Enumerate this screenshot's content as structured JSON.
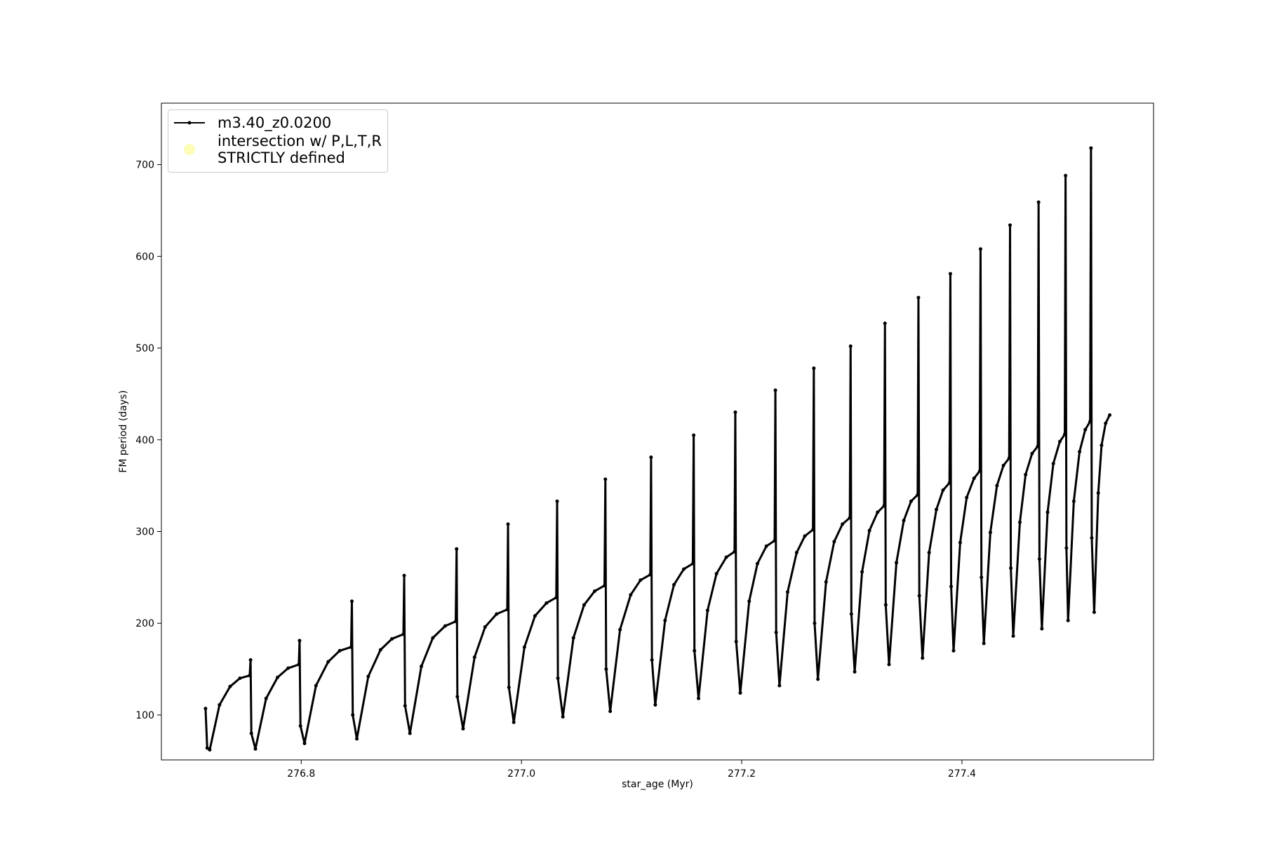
{
  "chart_data": {
    "type": "line",
    "xlabel": "star_age (Myr)",
    "ylabel": "FM period (days)",
    "xlim": [
      276.673,
      277.574
    ],
    "ylim": [
      51,
      767
    ],
    "xticks": [
      276.8,
      {
        "value": 277,
        "label": "277.0"
      },
      277.2,
      277.4
    ],
    "yticks": [
      100,
      200,
      300,
      400,
      500,
      600,
      700
    ],
    "grid": false,
    "legend": "upper left",
    "series": [
      {
        "name": "m3.40_z0.0200",
        "color": "#000000",
        "style": "line-dot",
        "x": [
          276.7131,
          276.7146,
          276.7169,
          276.7258,
          276.7354,
          276.7443,
          276.7532,
          276.754,
          276.7547,
          276.7584,
          276.7681,
          276.7785,
          276.7881,
          276.7978,
          276.7985,
          276.7993,
          276.803,
          276.8134,
          276.8245,
          276.8349,
          276.8453,
          276.846,
          276.8468,
          276.8505,
          276.8609,
          276.872,
          276.8824,
          276.8928,
          276.8935,
          276.8943,
          276.8987,
          276.9091,
          276.9195,
          276.9307,
          276.9403,
          276.9411,
          276.9418,
          276.947,
          276.9574,
          276.967,
          276.9774,
          276.9871,
          276.9878,
          276.9886,
          276.993,
          277.0027,
          277.0123,
          277.0227,
          277.0316,
          277.0324,
          277.0331,
          277.0376,
          277.0472,
          277.0569,
          277.0665,
          277.0754,
          277.0762,
          277.0769,
          277.0806,
          277.0895,
          277.0992,
          277.1081,
          277.117,
          277.1177,
          277.1185,
          277.1215,
          277.1304,
          277.1385,
          277.1474,
          277.1556,
          277.1564,
          277.1571,
          277.1608,
          277.169,
          277.1771,
          277.186,
          277.1935,
          277.1942,
          277.195,
          277.1987,
          277.2068,
          277.2143,
          277.2224,
          277.2299,
          277.2306,
          277.2313,
          277.2343,
          277.2417,
          277.2499,
          277.2573,
          277.2647,
          277.2655,
          277.2662,
          277.2692,
          277.2766,
          277.284,
          277.2915,
          277.2982,
          277.2989,
          277.2996,
          277.3026,
          277.3093,
          277.316,
          277.3234,
          277.3293,
          277.3301,
          277.3308,
          277.3338,
          277.3405,
          277.3472,
          277.3538,
          277.3598,
          277.3605,
          277.3613,
          277.3642,
          277.3702,
          277.3768,
          277.3828,
          277.3887,
          277.3895,
          277.3902,
          277.3924,
          277.3984,
          277.4043,
          277.411,
          277.4162,
          277.4169,
          277.4177,
          277.4199,
          277.4258,
          277.4318,
          277.4377,
          277.4429,
          277.4437,
          277.4444,
          277.4466,
          277.4526,
          277.4578,
          277.4637,
          277.4689,
          277.4696,
          277.4704,
          277.4726,
          277.4778,
          277.483,
          277.4889,
          277.4934,
          277.4941,
          277.4949,
          277.4964,
          277.5016,
          277.5068,
          277.512,
          277.5164,
          277.5172,
          277.5179,
          277.5201,
          277.5238,
          277.5268,
          277.5305,
          277.5342
        ],
        "values": [
          107,
          64,
          62,
          111,
          131,
          140,
          143,
          160,
          80,
          63,
          118,
          141,
          151,
          155,
          181,
          88,
          69,
          132,
          158,
          170,
          174,
          224,
          100,
          74,
          142,
          171,
          183,
          188,
          252,
          110,
          80,
          153,
          184,
          197,
          202,
          281,
          120,
          85,
          163,
          196,
          210,
          215,
          308,
          130,
          92,
          174,
          208,
          222,
          228,
          333,
          140,
          98,
          184,
          220,
          235,
          241,
          357,
          150,
          104,
          193,
          231,
          247,
          253,
          381,
          160,
          111,
          203,
          242,
          259,
          265,
          405,
          170,
          118,
          214,
          254,
          272,
          278,
          430,
          180,
          124,
          224,
          265,
          284,
          290,
          454,
          190,
          132,
          234,
          277,
          295,
          302,
          478,
          200,
          139,
          245,
          289,
          308,
          315,
          502,
          210,
          147,
          256,
          301,
          321,
          328,
          527,
          220,
          155,
          266,
          312,
          333,
          340,
          555,
          230,
          162,
          277,
          324,
          345,
          353,
          581,
          240,
          170,
          288,
          337,
          358,
          366,
          608,
          250,
          178,
          299,
          350,
          372,
          380,
          634,
          260,
          186,
          310,
          362,
          385,
          393,
          659,
          270,
          194,
          321,
          374,
          398,
          406,
          688,
          282,
          203,
          333,
          387,
          411,
          420,
          718,
          293,
          212,
          342,
          394,
          418,
          427
        ]
      },
      {
        "name": "intersection w/ P,L,T,R\nSTRICTLY defined",
        "color": "#fdfdb8",
        "style": "scatter",
        "x": [],
        "values": []
      }
    ]
  }
}
